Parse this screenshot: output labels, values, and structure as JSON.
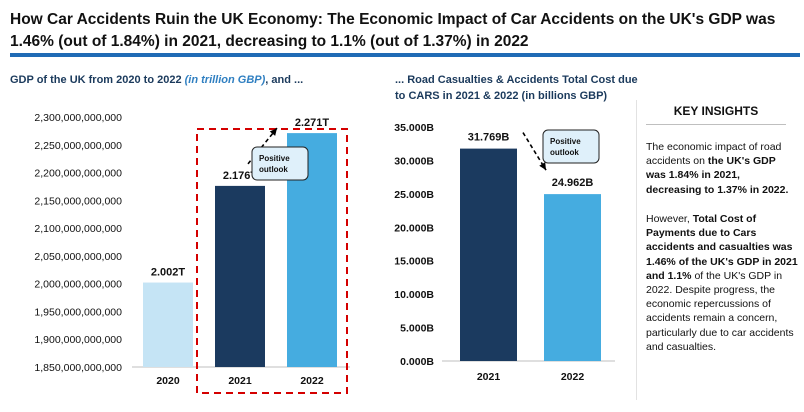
{
  "title": "How Car Accidents Ruin the UK Economy: The Economic Impact of Car Accidents on the UK's GDP was 1.46% (out of 1.84%) in 2021, decreasing to 1.1% (out of 1.37%) in 2022",
  "colors": {
    "title_rule": "#1f6bb5",
    "dark_navy": "#1b3a5f",
    "light_blue": "#c5e4f5",
    "mid_blue": "#45ace0",
    "callout_bg": "#dff0fa",
    "dashed_box": "#d40000"
  },
  "chart_data": [
    {
      "type": "bar",
      "title_main": "GDP of the UK from 2020 to 2022 ",
      "title_unit": "(in trillion GBP)",
      "title_tail": ", and ...",
      "categories": [
        "2020",
        "2021",
        "2022"
      ],
      "values": [
        2002000000000,
        2176000000000,
        2271000000000
      ],
      "data_labels": [
        "2.002T",
        "2.176T",
        "2.271T"
      ],
      "ylim": [
        1850000000000,
        2300000000000
      ],
      "yticks": [
        "1,850,000,000,000",
        "1,900,000,000,000",
        "1,950,000,000,000",
        "2,000,000,000,000",
        "2,050,000,000,000",
        "2,100,000,000,000",
        "2,150,000,000,000",
        "2,200,000,000,000",
        "2,250,000,000,000",
        "2,300,000,000,000"
      ],
      "callout": "Positive outlook",
      "grid": false
    },
    {
      "type": "bar",
      "title_line1": "... Road Casualties & Accidents Total Cost due",
      "title_line2": "to CARS in 2021 & 2022 (in billions GBP)",
      "categories": [
        "2021",
        "2022"
      ],
      "values": [
        31.769,
        24.962
      ],
      "data_labels": [
        "31.769B",
        "24.962B"
      ],
      "ylim": [
        0,
        35
      ],
      "yticks": [
        "0.000B",
        "5.000B",
        "10.000B",
        "15.000B",
        "20.000B",
        "25.000B",
        "30.000B",
        "35.000B"
      ],
      "callout": "Positive outlook",
      "grid": false
    }
  ],
  "insights": {
    "heading": "KEY INSIGHTS",
    "p1_a": "The economic impact of road accidents on ",
    "p1_b": "the UK's GDP was 1.84% in 2021, decreasing to 1.37% in 2022.",
    "p2_a": "However, ",
    "p2_b": "Total Cost of Payments due to Cars accidents and casualties was 1.46% of the UK's GDP in 2021 and 1.1%",
    "p2_c": " of the UK's GDP in 2022. Despite progress, the economic repercussions of accidents remain a concern, particularly due to car accidents and casualties."
  }
}
